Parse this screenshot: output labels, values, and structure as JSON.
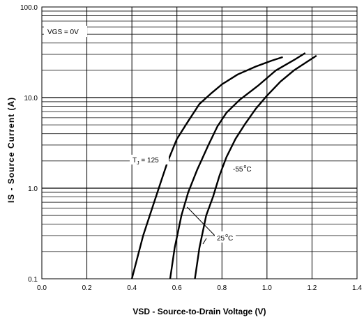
{
  "chart_data": {
    "type": "line",
    "title": "",
    "xlabel": "VSD - Source-to-Drain Voltage (V)",
    "ylabel": "IS - Source Current (A)",
    "xlim": [
      0.0,
      1.4
    ],
    "ylim": [
      0.1,
      100.0
    ],
    "y_scale": "log",
    "grid": true,
    "x_ticks": [
      "0.0",
      "0.2",
      "0.4",
      "0.6",
      "0.8",
      "1.0",
      "1.2",
      "1.4"
    ],
    "y_ticks": [
      "0.1",
      "1.0",
      "10.0",
      "100.0"
    ],
    "series": [
      {
        "x": [
          0.4,
          0.45,
          0.49,
          0.53,
          0.56,
          0.6,
          0.65,
          0.7,
          0.75,
          0.8,
          0.87,
          0.95,
          1.02,
          1.07
        ],
        "y": [
          0.1,
          0.3,
          0.6,
          1.2,
          2.0,
          3.5,
          5.5,
          8.5,
          11.0,
          14.0,
          18.0,
          22.0,
          25.5,
          28.0
        ]
      },
      {
        "x": [
          0.57,
          0.59,
          0.62,
          0.65,
          0.69,
          0.74,
          0.78,
          0.82,
          0.88,
          0.96,
          1.04,
          1.12,
          1.17
        ],
        "y": [
          0.1,
          0.22,
          0.5,
          0.9,
          1.6,
          3.0,
          4.8,
          6.8,
          9.5,
          13.5,
          20.0,
          26.0,
          31.0
        ]
      },
      {
        "x": [
          0.68,
          0.7,
          0.73,
          0.76,
          0.79,
          0.82,
          0.86,
          0.9,
          0.95,
          1.0,
          1.06,
          1.12,
          1.19,
          1.22
        ],
        "y": [
          0.1,
          0.22,
          0.5,
          0.8,
          1.4,
          2.2,
          3.5,
          5.0,
          7.5,
          10.5,
          15.0,
          20.0,
          26.0,
          29.0
        ]
      }
    ],
    "annotations": {
      "vgs": "VGS = 0V",
      "tj_t": "T",
      "tj_sub": "J",
      "tj_rest": " = 125",
      "t25": "25",
      "t25_unit": "C",
      "tm55": "-55",
      "tm55_unit": "C",
      "deg": "o"
    }
  }
}
